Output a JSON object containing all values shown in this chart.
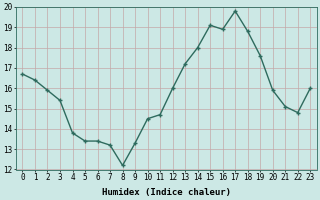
{
  "x": [
    0,
    1,
    2,
    3,
    4,
    5,
    6,
    7,
    8,
    9,
    10,
    11,
    12,
    13,
    14,
    15,
    16,
    17,
    18,
    19,
    20,
    21,
    22,
    23
  ],
  "y": [
    16.7,
    16.4,
    15.9,
    15.4,
    13.8,
    13.4,
    13.4,
    13.2,
    12.2,
    13.3,
    14.5,
    14.7,
    16.0,
    17.2,
    18.0,
    19.1,
    18.9,
    19.8,
    18.8,
    17.6,
    15.9,
    15.1,
    14.8,
    16.0
  ],
  "line_color": "#2e6b5e",
  "marker": "+",
  "marker_size": 3.5,
  "bg_color": "#cce8e5",
  "grid_color": "#b0c4c0",
  "xlabel": "Humidex (Indice chaleur)",
  "xlim": [
    -0.5,
    23.5
  ],
  "ylim": [
    12,
    20
  ],
  "yticks": [
    12,
    13,
    14,
    15,
    16,
    17,
    18,
    19,
    20
  ],
  "xticks": [
    0,
    1,
    2,
    3,
    4,
    5,
    6,
    7,
    8,
    9,
    10,
    11,
    12,
    13,
    14,
    15,
    16,
    17,
    18,
    19,
    20,
    21,
    22,
    23
  ],
  "xlabel_fontsize": 6.5,
  "tick_fontsize": 5.5,
  "linewidth": 1.0,
  "marker_linewidth": 1.0
}
